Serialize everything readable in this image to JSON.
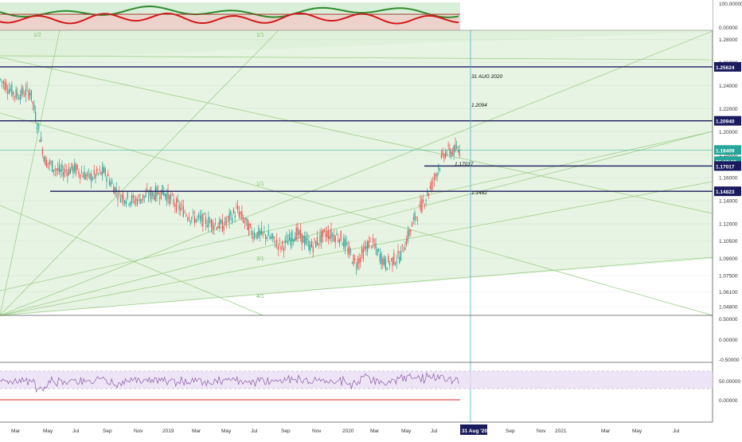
{
  "chart_data": {
    "type": "candlestick",
    "symbol": "EURUSD",
    "x_axis": {
      "tick_labels": [
        "Mar",
        "May",
        "Jul",
        "Sep",
        "Nov",
        "2019",
        "Mar",
        "May",
        "Jul",
        "Sep",
        "Nov",
        "2020",
        "Mar",
        "May",
        "Jul",
        "31 Aug '20",
        "Sep",
        "Nov",
        "2021",
        "Mar",
        "May",
        "Jul"
      ]
    },
    "price_axis": {
      "ylim": [
        1.0405,
        1.288
      ],
      "tick_labels": [
        "1.28000",
        "1.26000",
        "1.24000",
        "1.22000",
        "1.20000",
        "1.18000",
        "1.16000",
        "1.14000",
        "1.12000",
        "1.10500",
        "1.09000",
        "1.07500",
        "1.06100",
        "1.04800"
      ]
    },
    "price_badges": [
      {
        "value": "1.25624",
        "color": "#1a1a5e"
      },
      {
        "value": "1.20940",
        "color": "#1a1a5e"
      },
      {
        "value": "1.18409",
        "color": "#26a69a"
      },
      {
        "value": "06:12:19",
        "color": "#26a69a"
      },
      {
        "value": "1.17017",
        "color": "#1a1a5e"
      },
      {
        "value": "1.14823",
        "color": "#1a1a5e"
      }
    ],
    "horizontal_levels": [
      1.25624,
      1.2094,
      1.17017,
      1.14823
    ],
    "annotations": [
      {
        "text": "31 AUG 2020"
      },
      {
        "text": "1.2094"
      },
      {
        "text": "1.17017"
      },
      {
        "text": "1.1482"
      }
    ],
    "gann_labels": [
      "1/2",
      "1/1",
      "1/1",
      "2/1",
      "3/1",
      "4/1",
      "8/1"
    ],
    "price_series": {
      "dates": [
        "2018-02",
        "2018-03",
        "2018-04",
        "2018-05",
        "2018-06",
        "2018-07",
        "2018-08",
        "2018-09",
        "2018-10",
        "2018-11",
        "2018-12",
        "2019-01",
        "2019-02",
        "2019-03",
        "2019-04",
        "2019-05",
        "2019-06",
        "2019-07",
        "2019-08",
        "2019-09",
        "2019-10",
        "2019-11",
        "2019-12",
        "2020-01",
        "2020-02",
        "2020-03",
        "2020-04",
        "2020-05",
        "2020-06",
        "2020-07",
        "2020-08",
        "2020-09"
      ],
      "close": [
        1.245,
        1.232,
        1.235,
        1.175,
        1.165,
        1.168,
        1.16,
        1.165,
        1.145,
        1.14,
        1.145,
        1.148,
        1.135,
        1.125,
        1.122,
        1.118,
        1.132,
        1.112,
        1.11,
        1.1,
        1.112,
        1.1,
        1.112,
        1.108,
        1.085,
        1.105,
        1.085,
        1.092,
        1.125,
        1.15,
        1.182,
        1.184
      ]
    },
    "top_indicator": {
      "tick_labels": [
        "100.00000",
        "0.00000"
      ],
      "series": [
        {
          "color": "#2e8b2e"
        },
        {
          "color": "#d11a1a"
        }
      ]
    },
    "middle_indicator": {
      "tick_labels": [
        "0.50000",
        "0.00000",
        "-0.50000"
      ]
    },
    "rsi": {
      "tick_labels": [
        "50.00000",
        "0.00000"
      ]
    },
    "colors": {
      "up": "#26a69a",
      "down": "#ef5350",
      "zone": "#d4ebcc",
      "level": "#1a1a5e",
      "cursor": "#4fb3c9"
    }
  }
}
